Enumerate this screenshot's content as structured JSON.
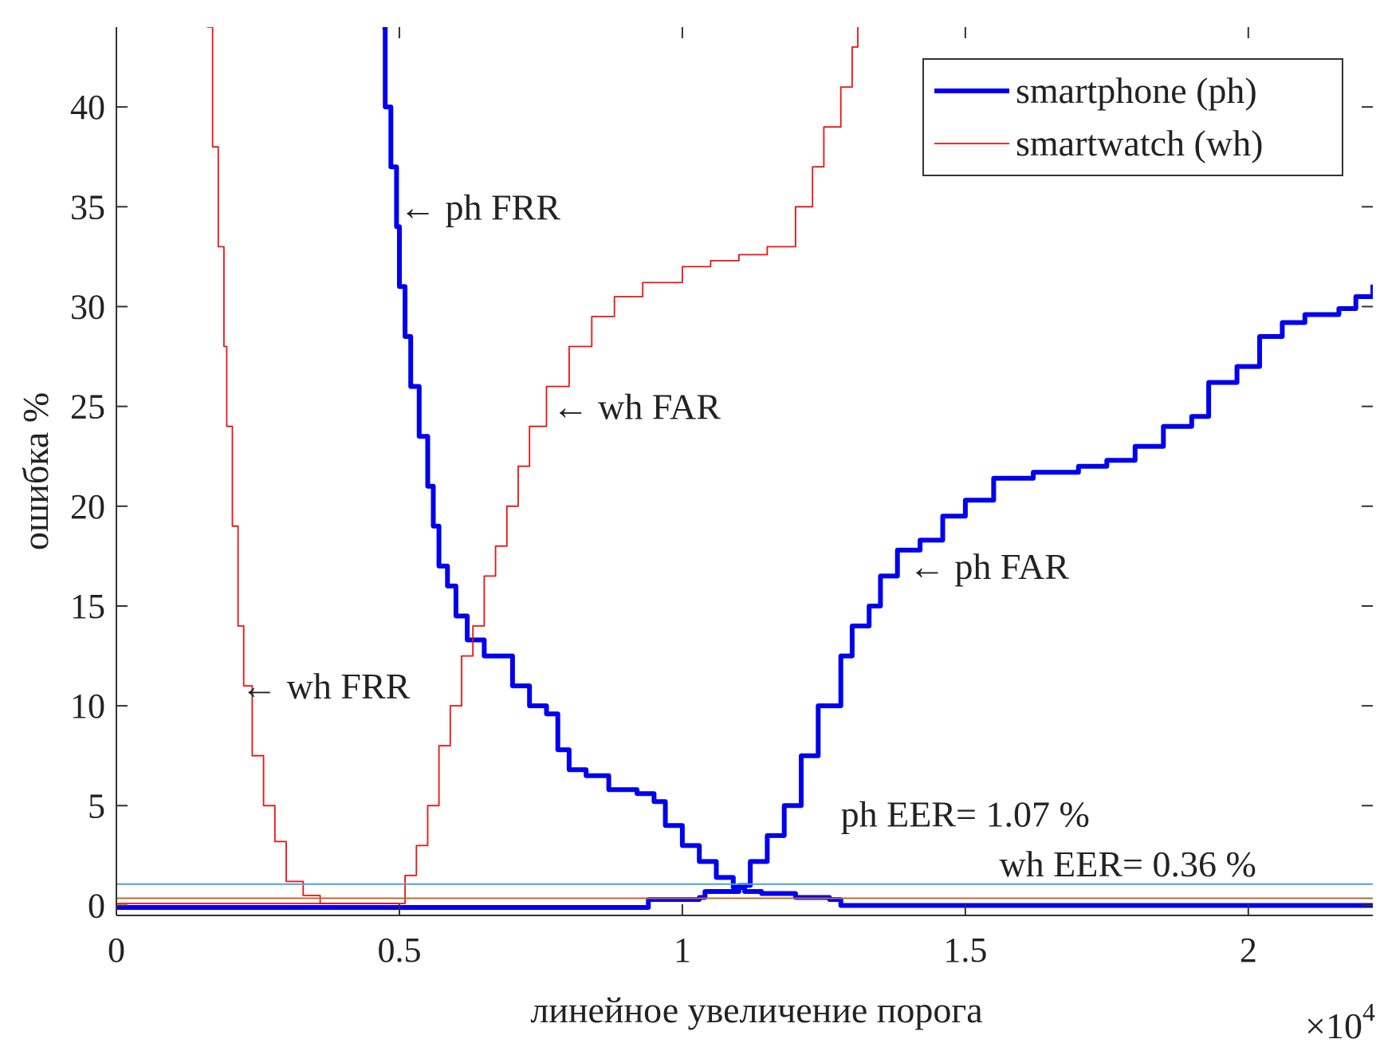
{
  "chart_data": {
    "type": "line",
    "title": "",
    "xlabel": "линейное увеличение порога",
    "ylabel": "ошибка %",
    "x_multiplier_label": "×10",
    "x_multiplier_exponent": "4",
    "xlim": [
      0,
      22200
    ],
    "ylim": [
      -0.5,
      44
    ],
    "x_ticks": [
      0,
      5000,
      10000,
      15000,
      20000
    ],
    "x_tick_labels": [
      "0",
      "0.5",
      "1",
      "1.5",
      "2"
    ],
    "y_ticks": [
      0,
      5,
      10,
      15,
      20,
      25,
      30,
      35,
      40
    ],
    "y_tick_labels": [
      "0",
      "5",
      "10",
      "15",
      "20",
      "25",
      "30",
      "35",
      "40"
    ],
    "grid": false,
    "legend_position": "top-right",
    "legend": [
      {
        "label": "smartphone (ph)",
        "color": "#0000ee",
        "style": "thick"
      },
      {
        "label": "smartwatch (wh)",
        "color": "#ee1111",
        "style": "thin"
      }
    ],
    "series": [
      {
        "name": "ph FRR",
        "legend_group": "smartphone (ph)",
        "color": "#0000ee",
        "points": [
          [
            4700,
            44
          ],
          [
            4750,
            40
          ],
          [
            4850,
            37
          ],
          [
            4950,
            34
          ],
          [
            5000,
            31
          ],
          [
            5100,
            28.5
          ],
          [
            5200,
            26
          ],
          [
            5350,
            23.5
          ],
          [
            5500,
            21
          ],
          [
            5600,
            19
          ],
          [
            5700,
            17
          ],
          [
            5850,
            16
          ],
          [
            6000,
            14.5
          ],
          [
            6200,
            13.3
          ],
          [
            6500,
            12.5
          ],
          [
            7000,
            11
          ],
          [
            7300,
            10
          ],
          [
            7600,
            9.6
          ],
          [
            7800,
            7.8
          ],
          [
            8000,
            6.8
          ],
          [
            8300,
            6.5
          ],
          [
            8700,
            5.8
          ],
          [
            9200,
            5.6
          ],
          [
            9500,
            5.2
          ],
          [
            9700,
            4
          ],
          [
            10000,
            3
          ],
          [
            10300,
            2.2
          ],
          [
            10600,
            1.4
          ],
          [
            10900,
            0.9
          ],
          [
            11100,
            0.7
          ],
          [
            11400,
            0.6
          ],
          [
            12000,
            0.4
          ],
          [
            12600,
            0.3
          ],
          [
            12800,
            0
          ],
          [
            22200,
            0
          ]
        ]
      },
      {
        "name": "ph FAR",
        "legend_group": "smartphone (ph)",
        "color": "#0000ee",
        "points": [
          [
            0,
            -0.1
          ],
          [
            9300,
            -0.1
          ],
          [
            9400,
            0.3
          ],
          [
            10300,
            0.4
          ],
          [
            10400,
            0.7
          ],
          [
            10800,
            0.7
          ],
          [
            11000,
            1
          ],
          [
            11200,
            2.2
          ],
          [
            11500,
            3.5
          ],
          [
            11800,
            5
          ],
          [
            12100,
            7.5
          ],
          [
            12400,
            10
          ],
          [
            12800,
            12.5
          ],
          [
            13000,
            14
          ],
          [
            13300,
            15
          ],
          [
            13500,
            16.5
          ],
          [
            13800,
            17.8
          ],
          [
            14200,
            18.3
          ],
          [
            14600,
            19.5
          ],
          [
            15000,
            20.3
          ],
          [
            15500,
            21.4
          ],
          [
            16200,
            21.7
          ],
          [
            17000,
            22
          ],
          [
            17500,
            22.3
          ],
          [
            18000,
            23
          ],
          [
            18500,
            24
          ],
          [
            19000,
            24.5
          ],
          [
            19300,
            26.2
          ],
          [
            19800,
            27
          ],
          [
            20200,
            28.5
          ],
          [
            20600,
            29.2
          ],
          [
            21000,
            29.6
          ],
          [
            21600,
            29.9
          ],
          [
            21900,
            30.5
          ],
          [
            22200,
            31.1
          ]
        ]
      },
      {
        "name": "wh FRR",
        "legend_group": "smartwatch (wh)",
        "color": "#ee1111",
        "points": [
          [
            1600,
            44
          ],
          [
            1700,
            38
          ],
          [
            1800,
            33
          ],
          [
            1900,
            28
          ],
          [
            1950,
            24
          ],
          [
            2050,
            19
          ],
          [
            2150,
            14
          ],
          [
            2250,
            11
          ],
          [
            2400,
            7.5
          ],
          [
            2600,
            5
          ],
          [
            2800,
            3.2
          ],
          [
            3000,
            1.2
          ],
          [
            3300,
            0.5
          ],
          [
            3600,
            0.1
          ],
          [
            5000,
            0.1
          ]
        ]
      },
      {
        "name": "wh FAR",
        "legend_group": "smartwatch (wh)",
        "color": "#ee1111",
        "points": [
          [
            0,
            0.1
          ],
          [
            5000,
            0.1
          ],
          [
            5100,
            1.5
          ],
          [
            5300,
            3
          ],
          [
            5500,
            5
          ],
          [
            5700,
            8
          ],
          [
            5900,
            10
          ],
          [
            6100,
            12.5
          ],
          [
            6300,
            14
          ],
          [
            6500,
            16.5
          ],
          [
            6700,
            18
          ],
          [
            6900,
            20
          ],
          [
            7100,
            22
          ],
          [
            7300,
            24
          ],
          [
            7600,
            26
          ],
          [
            8000,
            28
          ],
          [
            8400,
            29.5
          ],
          [
            8800,
            30.5
          ],
          [
            9300,
            31.2
          ],
          [
            10000,
            32
          ],
          [
            10500,
            32.3
          ],
          [
            11000,
            32.6
          ],
          [
            11500,
            33
          ],
          [
            12000,
            35
          ],
          [
            12300,
            37
          ],
          [
            12500,
            39
          ],
          [
            12800,
            41
          ],
          [
            13000,
            43
          ],
          [
            13100,
            44
          ]
        ]
      },
      {
        "name": "",
        "color": "#4aa3d8",
        "points": [
          [
            0,
            1.07
          ],
          [
            22200,
            1.07
          ]
        ]
      },
      {
        "name": "",
        "color": "#c06a2c",
        "points": [
          [
            0,
            0.36
          ],
          [
            22200,
            0.36
          ]
        ]
      }
    ],
    "annotations": [
      {
        "text": "← ph FRR",
        "x": 5000,
        "y": 35
      },
      {
        "text": "← wh FAR",
        "x": 7700,
        "y": 25
      },
      {
        "text": "← ph FAR",
        "x": 14000,
        "y": 17
      },
      {
        "text": "← wh FRR",
        "x": 2200,
        "y": 11
      },
      {
        "text": "ph EER= 1.07 %",
        "x": 12800,
        "y": 4.6
      },
      {
        "text": "wh EER= 0.36 %",
        "x": 15600,
        "y": 2.1
      }
    ]
  }
}
